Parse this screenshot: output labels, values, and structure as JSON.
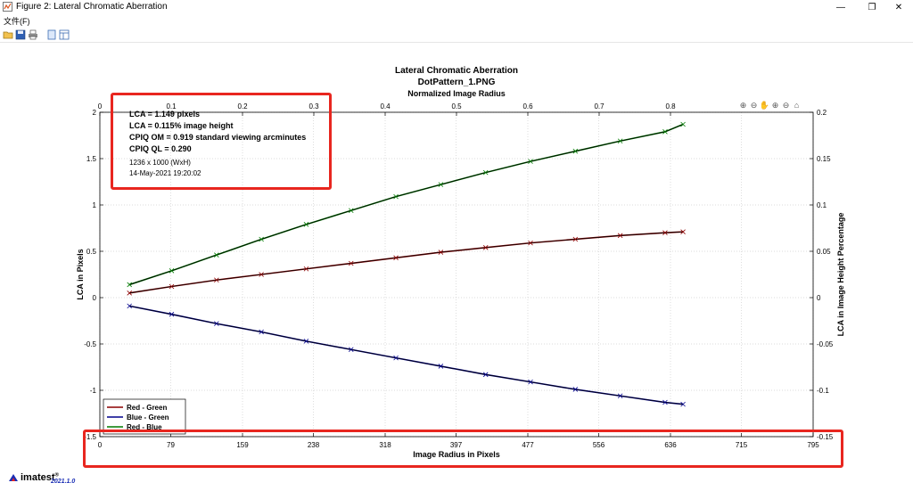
{
  "window": {
    "title": "Figure 2: Lateral Chromatic Aberration",
    "minimize": "—",
    "maximize": "❐",
    "close": "✕"
  },
  "menu": {
    "file": "文件(F)"
  },
  "toolbar": {
    "icons": [
      "open-folder-icon",
      "save-icon",
      "print-icon",
      "page-icon",
      "layout-icon"
    ]
  },
  "info": {
    "lca_pixels": "LCA = 1.149 pixels",
    "lca_height": "LCA = 0.115% image height",
    "cpiq_om": "CPIQ OM = 0.919 standard viewing arcminutes",
    "cpiq_ql": "CPIQ QL = 0.290",
    "image_size": "1236 x 1000 (WxH)",
    "date": "14-May-2021 19:20:02"
  },
  "plot_tools": [
    "zoom-in-icon",
    "zoom-out-icon",
    "pan-icon",
    "magnify-icon",
    "magnify-out-icon",
    "home-icon"
  ],
  "footer": {
    "logo": "imatest",
    "reg": "®",
    "version": "2021.1.0"
  },
  "colors": {
    "red_green": "#8b0000",
    "blue_green": "#00008b",
    "red_blue": "#007a00",
    "fit": "#000000",
    "highlight": "#e8261f"
  },
  "chart_data": {
    "type": "line",
    "title": "Lateral Chromatic Aberration",
    "subtitle": "DotPattern_1.PNG",
    "top_xlabel": "Normalized Image Radius",
    "xlabel": "Image Radius in Pixels",
    "ylabel": "LCA in Pixels",
    "y2label": "LCA in Image Height Percentage",
    "xlim": [
      0,
      795
    ],
    "ylim": [
      -1.5,
      2
    ],
    "y2lim": [
      -0.15,
      0.2
    ],
    "top_xlim": [
      0,
      1
    ],
    "x_ticks": [
      "0",
      "79",
      "159",
      "238",
      "318",
      "397",
      "477",
      "556",
      "636",
      "715",
      "795"
    ],
    "y_ticks": [
      "-1.5",
      "-1",
      "-0.5",
      "0",
      "0.5",
      "1",
      "1.5",
      "2"
    ],
    "y2_ticks": [
      "-0.15",
      "-0.1",
      "-0.05",
      "0",
      "0.05",
      "0.1",
      "0.15",
      "0.2"
    ],
    "top_x_ticks": [
      "0",
      "0.1",
      "0.2",
      "0.3",
      "0.4",
      "0.5",
      "0.6",
      "0.7",
      "0.8"
    ],
    "legend_position": "bottom-left",
    "grid": true,
    "series": [
      {
        "name": "Red - Green",
        "color": "#8b0000",
        "x": [
          33,
          80,
          130,
          180,
          230,
          280,
          330,
          380,
          430,
          480,
          530,
          580,
          630,
          650
        ],
        "y": [
          0.05,
          0.12,
          0.19,
          0.25,
          0.31,
          0.37,
          0.43,
          0.49,
          0.54,
          0.59,
          0.63,
          0.67,
          0.7,
          0.71
        ]
      },
      {
        "name": "Blue - Green",
        "color": "#00008b",
        "x": [
          33,
          80,
          130,
          180,
          230,
          280,
          330,
          380,
          430,
          480,
          530,
          580,
          630,
          650
        ],
        "y": [
          -0.09,
          -0.18,
          -0.28,
          -0.37,
          -0.47,
          -0.56,
          -0.65,
          -0.74,
          -0.83,
          -0.91,
          -0.99,
          -1.06,
          -1.13,
          -1.15
        ]
      },
      {
        "name": "Red - Blue",
        "color": "#007a00",
        "x": [
          33,
          80,
          130,
          180,
          230,
          280,
          330,
          380,
          430,
          480,
          530,
          580,
          630,
          650
        ],
        "y": [
          0.14,
          0.29,
          0.46,
          0.63,
          0.79,
          0.94,
          1.09,
          1.22,
          1.35,
          1.47,
          1.58,
          1.69,
          1.79,
          1.87
        ]
      }
    ]
  }
}
